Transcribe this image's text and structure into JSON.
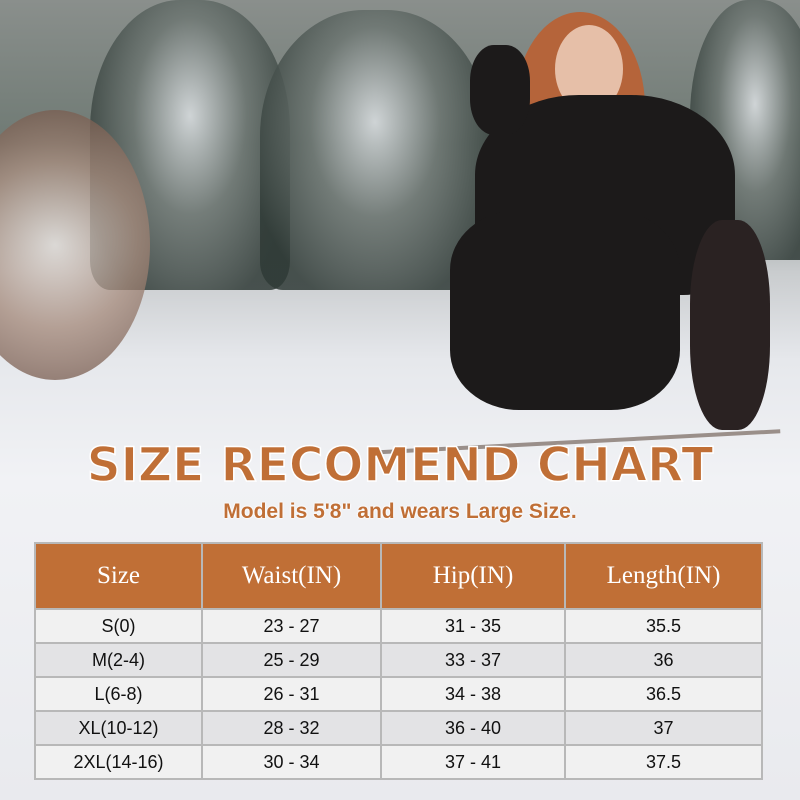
{
  "title": "SIZE RECOMEND CHART",
  "subtitle": "Model is 5'8\" and wears Large Size.",
  "accent_color": "#c06f36",
  "table": {
    "headers": [
      "Size",
      "Waist(IN)",
      "Hip(IN)",
      "Length(IN)"
    ],
    "rows": [
      [
        "S(0)",
        "23 - 27",
        "31 - 35",
        "35.5"
      ],
      [
        "M(2-4)",
        "25 - 29",
        "33 - 37",
        "36"
      ],
      [
        "L(6-8)",
        "26 - 31",
        "34 - 38",
        "36.5"
      ],
      [
        "XL(10-12)",
        "28 - 32",
        "36 - 40",
        "37"
      ],
      [
        "2XL(14-16)",
        "30 - 34",
        "37 - 41",
        "37.5"
      ]
    ]
  }
}
